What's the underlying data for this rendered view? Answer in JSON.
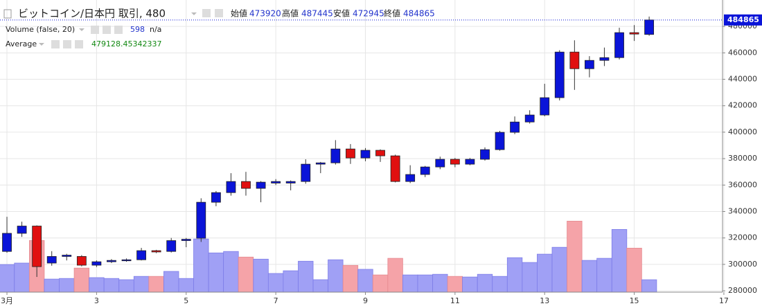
{
  "chart_data": {
    "type": "candlestick",
    "title": "ビットコイン/日本円 取引, 480",
    "ohlc_labels": [
      "始値",
      "高値",
      "安値",
      "終値"
    ],
    "volume_label": "Volume (false, 20)",
    "volume_extra": "n/a",
    "average_label": "Average",
    "average_value": 479128.45342337,
    "x": [
      1,
      1.333,
      1.667,
      2,
      2.333,
      2.667,
      3,
      3.333,
      3.667,
      4,
      4.333,
      4.667,
      5,
      5.333,
      5.667,
      6,
      6.333,
      6.667,
      7,
      7.333,
      7.667,
      8,
      8.333,
      8.667,
      9,
      9.333,
      9.667,
      10,
      10.333,
      10.667,
      11,
      11.333,
      11.667,
      12,
      12.333,
      12.667,
      13,
      13.333,
      13.667,
      14,
      14.333,
      14.667,
      15,
      15.333
    ],
    "open": [
      309800,
      323500,
      329000,
      301000,
      306000,
      306000,
      299400,
      302000,
      303000,
      303500,
      310400,
      309800,
      318000,
      319800,
      347000,
      354300,
      362700,
      357500,
      361500,
      361500,
      362700,
      375800,
      376800,
      387300,
      380500,
      386300,
      382100,
      362700,
      368000,
      373700,
      379500,
      375800,
      379500,
      386800,
      399900,
      407700,
      413000,
      426100,
      460600,
      448000,
      454300,
      456400,
      475300,
      473920
    ],
    "high": [
      336000,
      332300,
      329500,
      310000,
      308000,
      307000,
      303000,
      304000,
      304500,
      312500,
      311000,
      320000,
      320000,
      350000,
      355500,
      369000,
      370000,
      363000,
      364500,
      363500,
      379500,
      377500,
      394000,
      391000,
      388000,
      387000,
      383000,
      375000,
      374500,
      381500,
      380500,
      380500,
      388500,
      401000,
      411900,
      416600,
      436600,
      462000,
      469500,
      457500,
      464000,
      479000,
      481000,
      487445
    ],
    "low": [
      308800,
      320800,
      290500,
      299000,
      303000,
      298500,
      298000,
      301000,
      302000,
      303000,
      308500,
      309000,
      313000,
      317000,
      344000,
      352000,
      352000,
      347000,
      360000,
      356000,
      361000,
      369000,
      375500,
      376000,
      378000,
      377500,
      362000,
      361500,
      366000,
      372000,
      373500,
      375000,
      378500,
      386000,
      398500,
      406500,
      412000,
      424000,
      432000,
      441500,
      450000,
      455000,
      469000,
      472945
    ],
    "close": [
      323500,
      329000,
      298300,
      306000,
      307000,
      299400,
      302000,
      303000,
      303500,
      310400,
      309400,
      318000,
      319000,
      347000,
      354300,
      362700,
      357500,
      362200,
      362700,
      362700,
      375800,
      376800,
      387300,
      380500,
      386300,
      382100,
      362700,
      368000,
      373700,
      379500,
      375800,
      379500,
      386800,
      399900,
      407700,
      413000,
      426100,
      460600,
      448000,
      454300,
      456400,
      475300,
      474200,
      484865
    ],
    "volume": [
      1330,
      1400,
      2490,
      630,
      660,
      1160,
      700,
      660,
      600,
      760,
      760,
      1000,
      660,
      2560,
      1890,
      1960,
      1690,
      1590,
      900,
      1030,
      1490,
      600,
      1560,
      1290,
      1100,
      830,
      1630,
      830,
      830,
      860,
      760,
      730,
      860,
      760,
      1660,
      1430,
      1830,
      2160,
      3420,
      1530,
      1630,
      3020,
      2120,
      598
    ],
    "up_color": "#0a14d8",
    "down_color": "#e01010",
    "volume_up_color": "#a0a0f5",
    "volume_down_color": "#f5a3a8",
    "ylim": [
      279000,
      489500
    ],
    "yticks": [
      280000,
      300000,
      320000,
      340000,
      360000,
      380000,
      400000,
      420000,
      440000,
      460000,
      480000
    ],
    "volume_ylim": [
      0,
      13400
    ],
    "xlim": [
      0.845,
      16.97
    ],
    "xticks": [
      {
        "value": 1,
        "label": "3月"
      },
      3,
      5,
      7,
      9,
      11,
      13,
      15,
      17
    ],
    "grid": true
  }
}
